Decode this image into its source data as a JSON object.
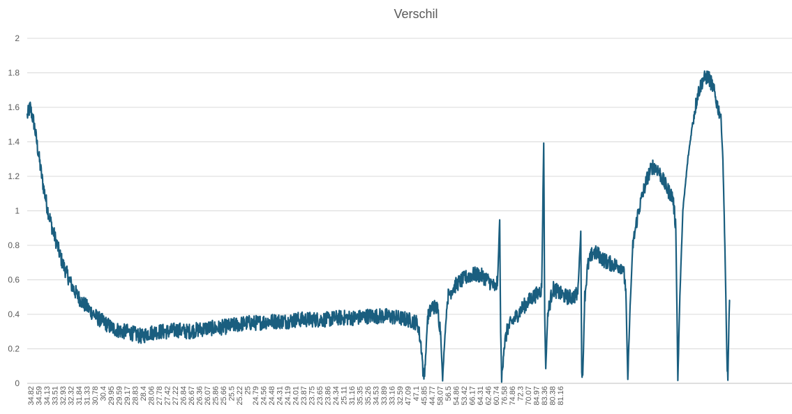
{
  "chart_data": {
    "type": "line",
    "title": "Verschil",
    "xlabel": "",
    "ylabel": "",
    "ylim": [
      0,
      2
    ],
    "y_ticks": [
      "0",
      "0.2",
      "0.4",
      "0.6",
      "0.8",
      "1",
      "1.2",
      "1.4",
      "1.6",
      "1.8",
      "2"
    ],
    "x_tick_labels": [
      "34.82",
      "34.59",
      "34.13",
      "33.51",
      "32.93",
      "32.32",
      "31.84",
      "31.33",
      "30.78",
      "30.4",
      "29.95",
      "29.59",
      "29.17",
      "28.83",
      "28.4",
      "28.06",
      "27.78",
      "27.42",
      "27.22",
      "26.84",
      "26.67",
      "26.36",
      "26.07",
      "25.86",
      "25.66",
      "25.5",
      "25.22",
      "25",
      "24.79",
      "24.56",
      "24.48",
      "24.31",
      "24.19",
      "24.01",
      "23.87",
      "23.75",
      "23.65",
      "23.86",
      "24.34",
      "25.11",
      "31.16",
      "35.35",
      "35.26",
      "34.53",
      "33.89",
      "33.16",
      "32.59",
      "47.09",
      "47.1",
      "45.85",
      "44.77",
      "58.07",
      "56.5",
      "54.86",
      "53.42",
      "66.17",
      "64.31",
      "62.46",
      "60.74",
      "76.58",
      "74.86",
      "72.3",
      "70.07",
      "84.97",
      "83.36",
      "80.38",
      "81.16"
    ],
    "grid": true,
    "legend": "none",
    "series": [
      {
        "name": "",
        "color": "#1a5e7f",
        "points": [
          [
            0,
            1.55
          ],
          [
            0.3,
            1.6
          ],
          [
            0.7,
            1.5
          ],
          [
            1.0,
            1.38
          ],
          [
            1.5,
            1.18
          ],
          [
            2.0,
            1.02
          ],
          [
            2.5,
            0.9
          ],
          [
            3.0,
            0.8
          ],
          [
            3.5,
            0.7
          ],
          [
            4.0,
            0.63
          ],
          [
            4.5,
            0.56
          ],
          [
            5.0,
            0.51
          ],
          [
            5.5,
            0.47
          ],
          [
            6.0,
            0.44
          ],
          [
            6.5,
            0.41
          ],
          [
            7.0,
            0.38
          ],
          [
            7.5,
            0.36
          ],
          [
            8.0,
            0.34
          ],
          [
            8.5,
            0.32
          ],
          [
            9.0,
            0.31
          ],
          [
            9.5,
            0.3
          ],
          [
            10.0,
            0.3
          ],
          [
            10.5,
            0.29
          ],
          [
            11.0,
            0.28
          ],
          [
            11.5,
            0.27
          ],
          [
            12.0,
            0.29
          ],
          [
            13.0,
            0.3
          ],
          [
            14.0,
            0.3
          ],
          [
            15.0,
            0.31
          ],
          [
            16.0,
            0.3
          ],
          [
            17.0,
            0.31
          ],
          [
            18.0,
            0.32
          ],
          [
            19.0,
            0.32
          ],
          [
            20.0,
            0.33
          ],
          [
            21.0,
            0.34
          ],
          [
            22.0,
            0.35
          ],
          [
            23.0,
            0.35
          ],
          [
            24.0,
            0.36
          ],
          [
            25.0,
            0.36
          ],
          [
            26.0,
            0.36
          ],
          [
            27.0,
            0.37
          ],
          [
            28.0,
            0.37
          ],
          [
            29.0,
            0.37
          ],
          [
            30.0,
            0.37
          ],
          [
            31.0,
            0.38
          ],
          [
            32.0,
            0.38
          ],
          [
            33.0,
            0.38
          ],
          [
            34.0,
            0.39
          ],
          [
            35.0,
            0.39
          ],
          [
            36.0,
            0.39
          ],
          [
            37.0,
            0.38
          ],
          [
            38.0,
            0.37
          ],
          [
            39.0,
            0.35
          ],
          [
            39.4,
            0.2
          ],
          [
            39.6,
            0.02
          ],
          [
            39.8,
            0.15
          ],
          [
            40.0,
            0.38
          ],
          [
            40.5,
            0.45
          ],
          [
            41.0,
            0.43
          ],
          [
            41.3,
            0.3
          ],
          [
            41.5,
            0.02
          ],
          [
            41.7,
            0.25
          ],
          [
            42.0,
            0.5
          ],
          [
            42.5,
            0.55
          ],
          [
            43.0,
            0.58
          ],
          [
            43.5,
            0.6
          ],
          [
            44.0,
            0.62
          ],
          [
            44.5,
            0.63
          ],
          [
            45.0,
            0.63
          ],
          [
            45.5,
            0.62
          ],
          [
            46.0,
            0.6
          ],
          [
            46.5,
            0.57
          ],
          [
            46.8,
            0.55
          ],
          [
            47.0,
            0.6
          ],
          [
            47.2,
            0.95
          ],
          [
            47.3,
            0.3
          ],
          [
            47.4,
            0.02
          ],
          [
            47.6,
            0.2
          ],
          [
            48.0,
            0.32
          ],
          [
            48.5,
            0.36
          ],
          [
            49.0,
            0.4
          ],
          [
            49.5,
            0.44
          ],
          [
            50.0,
            0.47
          ],
          [
            50.5,
            0.5
          ],
          [
            51.0,
            0.52
          ],
          [
            51.4,
            0.55
          ],
          [
            51.6,
            1.4
          ],
          [
            51.7,
            0.4
          ],
          [
            51.8,
            0.08
          ],
          [
            52.0,
            0.4
          ],
          [
            52.5,
            0.55
          ],
          [
            53.0,
            0.53
          ],
          [
            53.5,
            0.51
          ],
          [
            54.0,
            0.5
          ],
          [
            54.5,
            0.5
          ],
          [
            55.0,
            0.52
          ],
          [
            55.3,
            0.88
          ],
          [
            55.4,
            0.1
          ],
          [
            55.5,
            0.04
          ],
          [
            55.7,
            0.5
          ],
          [
            56.0,
            0.68
          ],
          [
            56.5,
            0.76
          ],
          [
            57.0,
            0.75
          ],
          [
            57.5,
            0.72
          ],
          [
            58.0,
            0.7
          ],
          [
            58.5,
            0.69
          ],
          [
            59.0,
            0.68
          ],
          [
            59.5,
            0.68
          ],
          [
            59.8,
            0.55
          ],
          [
            60.0,
            0.02
          ],
          [
            60.2,
            0.4
          ],
          [
            60.5,
            0.8
          ],
          [
            61.0,
            0.98
          ],
          [
            61.5,
            1.1
          ],
          [
            62.0,
            1.2
          ],
          [
            62.5,
            1.26
          ],
          [
            63.0,
            1.24
          ],
          [
            63.5,
            1.18
          ],
          [
            64.0,
            1.12
          ],
          [
            64.5,
            1.08
          ],
          [
            64.8,
            0.9
          ],
          [
            65.0,
            0.02
          ],
          [
            65.2,
            0.5
          ],
          [
            65.5,
            1.0
          ],
          [
            66.0,
            1.3
          ],
          [
            66.5,
            1.52
          ],
          [
            67.0,
            1.68
          ],
          [
            67.5,
            1.76
          ],
          [
            68.0,
            1.78
          ],
          [
            68.5,
            1.72
          ],
          [
            69.0,
            1.6
          ],
          [
            69.3,
            1.55
          ],
          [
            69.5,
            1.3
          ],
          [
            69.7,
            0.8
          ],
          [
            69.9,
            0.15
          ],
          [
            70.0,
            0.02
          ],
          [
            70.1,
            0.35
          ],
          [
            70.2,
            0.48
          ]
        ]
      }
    ]
  }
}
